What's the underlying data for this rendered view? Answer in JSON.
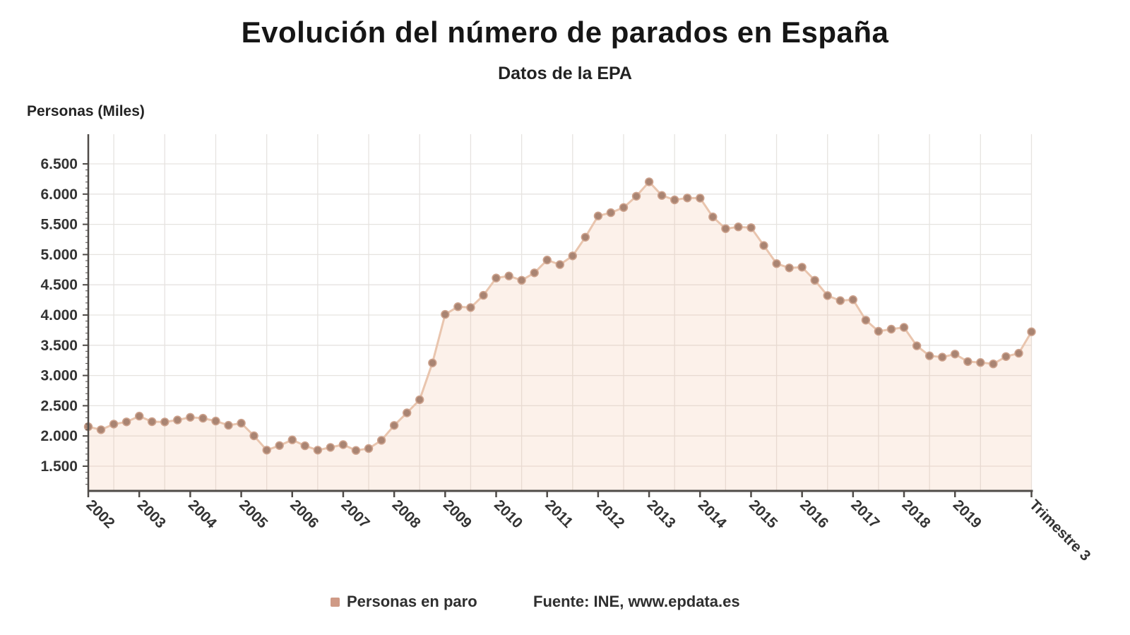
{
  "header": {
    "title": "Evolución del número de parados en España",
    "subtitle": "Datos de la EPA"
  },
  "legend": {
    "series_label": "Personas en paro",
    "source": "Fuente: INE, www.epdata.es",
    "marker_color": "#cf9a86"
  },
  "chart_data": {
    "type": "line",
    "title": "Evolución del número de parados en España",
    "subtitle": "Datos de la EPA",
    "ylabel": "Personas (Miles)",
    "xlabel": "",
    "frequency": "quarterly",
    "start_period": "2002-T1",
    "end_period": "2020-T3",
    "legend_position": "bottom",
    "grid": true,
    "ylim": [
      1100,
      7000
    ],
    "y_ticks": [
      {
        "value": 6500,
        "label": "6.500"
      },
      {
        "value": 6000,
        "label": "6.000"
      },
      {
        "value": 5500,
        "label": "5.500"
      },
      {
        "value": 5000,
        "label": "5.000"
      },
      {
        "value": 4500,
        "label": "4.500"
      },
      {
        "value": 4000,
        "label": "4.000"
      },
      {
        "value": 3500,
        "label": "3.500"
      },
      {
        "value": 3000,
        "label": "3.000"
      },
      {
        "value": 2500,
        "label": "2.500"
      },
      {
        "value": 2000,
        "label": "2.000"
      },
      {
        "value": 1500,
        "label": "1.500"
      }
    ],
    "x_ticks": [
      {
        "i": 0,
        "label": "2002"
      },
      {
        "i": 4,
        "label": "2003"
      },
      {
        "i": 8,
        "label": "2004"
      },
      {
        "i": 12,
        "label": "2005"
      },
      {
        "i": 16,
        "label": "2006"
      },
      {
        "i": 20,
        "label": "2007"
      },
      {
        "i": 24,
        "label": "2008"
      },
      {
        "i": 28,
        "label": "2009"
      },
      {
        "i": 32,
        "label": "2010"
      },
      {
        "i": 36,
        "label": "2011"
      },
      {
        "i": 40,
        "label": "2012"
      },
      {
        "i": 44,
        "label": "2013"
      },
      {
        "i": 48,
        "label": "2014"
      },
      {
        "i": 52,
        "label": "2015"
      },
      {
        "i": 56,
        "label": "2016"
      },
      {
        "i": 60,
        "label": "2017"
      },
      {
        "i": 64,
        "label": "2018"
      },
      {
        "i": 68,
        "label": "2019"
      },
      {
        "i": 74,
        "label": "Trimestre 3"
      }
    ],
    "series": [
      {
        "name": "Personas en paro",
        "values": [
          2152.8,
          2103.3,
          2196.0,
          2232.4,
          2328.5,
          2236.0,
          2231.4,
          2264.2,
          2308.5,
          2293.6,
          2246.9,
          2176.9,
          2212.0,
          2002.1,
          1765.0,
          1841.3,
          1935.8,
          1837.1,
          1765.0,
          1810.6,
          1856.1,
          1760.0,
          1791.9,
          1927.6,
          2174.2,
          2381.5,
          2598.8,
          3207.9,
          4010.7,
          4137.5,
          4123.3,
          4326.5,
          4612.7,
          4645.5,
          4574.7,
          4697.0,
          4910.2,
          4833.7,
          4978.3,
          5287.3,
          5639.5,
          5693.1,
          5778.1,
          5965.4,
          6202.7,
          5977.5,
          5904.7,
          5935.6,
          5933.3,
          5622.9,
          5427.7,
          5457.7,
          5444.6,
          5149.0,
          4850.8,
          4779.5,
          4791.4,
          4574.7,
          4320.8,
          4237.8,
          4255.0,
          3914.3,
          3731.7,
          3766.7,
          3796.1,
          3490.1,
          3326.0,
          3304.3,
          3354.2,
          3230.6,
          3214.4,
          3191.9,
          3313.0,
          3368.0,
          3722.9
        ]
      }
    ],
    "colors": {
      "dot": "#a98472",
      "dot_stroke": "#cda28d",
      "line": "#e9c5ae",
      "area_fill": "#f0b896",
      "grid": "#e6e3e0",
      "axis": "#4f4b48",
      "tick_text": "#333333"
    }
  }
}
